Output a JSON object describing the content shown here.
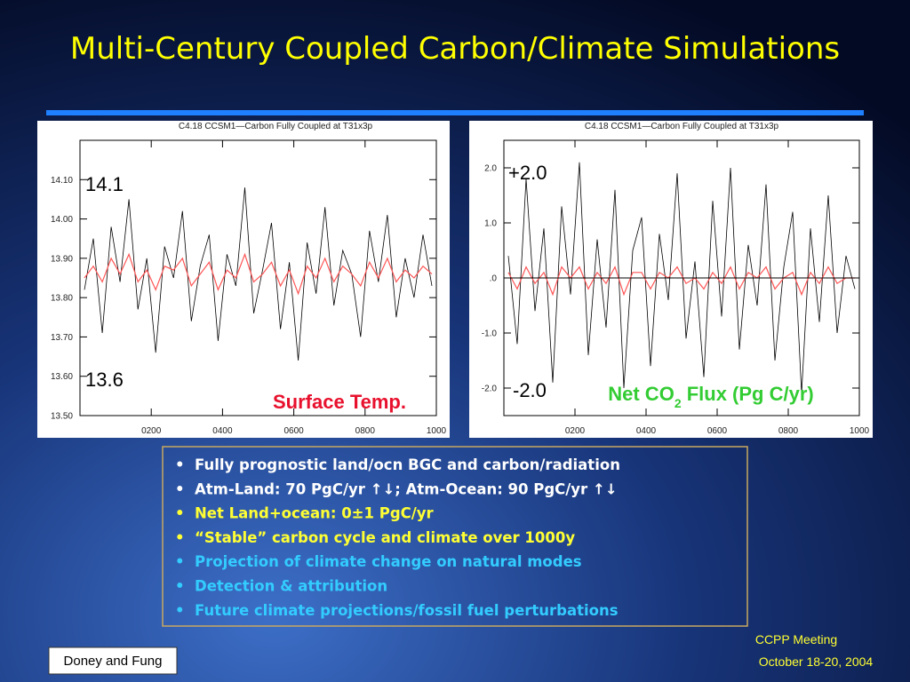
{
  "slide": {
    "title": "Multi-Century Coupled Carbon/Climate Simulations",
    "bullets": [
      {
        "text": "Fully prognostic land/ocn BGC and carbon/radiation",
        "color": "#ffffff"
      },
      {
        "text": "Atm-Land: 70 PgC/yr ↑↓; Atm-Ocean: 90 PgC/yr ↑↓",
        "color": "#ffffff"
      },
      {
        "text": "Net Land+ocean:     0±1 PgC/yr",
        "color": "#ffff33"
      },
      {
        "text": "“Stable” carbon cycle and climate over 1000y",
        "color": "#ffff33"
      },
      {
        "text": "Projection of climate change on natural modes",
        "color": "#33ccff"
      },
      {
        "text": "Detection & attribution",
        "color": "#33ccff"
      },
      {
        "text": "Future climate projections/fossil fuel perturbations",
        "color": "#33ccff"
      }
    ],
    "bullet_mark": "•",
    "meeting": "CCPP Meeting",
    "date": "October 18-20, 2004",
    "authors": "Doney and Fung"
  },
  "chart_data": [
    {
      "type": "line",
      "title": "C4.18 CCSM1—Carbon Fully Coupled at T31x3p",
      "x": [
        12.5,
        37.5,
        62.5,
        87.5,
        112.5,
        137.5,
        162.5,
        187.5,
        212.5,
        237.5,
        262.5,
        287.5,
        312.5,
        337.5,
        362.5,
        387.5,
        412.5,
        437.5,
        462.5,
        487.5,
        512.5,
        537.5,
        562.5,
        587.5,
        612.5,
        637.5,
        662.5,
        687.5,
        712.5,
        737.5,
        762.5,
        787.5,
        812.5,
        837.5,
        862.5,
        887.5,
        912.5,
        937.5,
        962.5,
        987.5
      ],
      "series": [
        {
          "color": "#000000",
          "values": [
            13.82,
            13.95,
            13.71,
            13.98,
            13.84,
            14.05,
            13.77,
            13.9,
            13.66,
            13.93,
            13.85,
            14.02,
            13.74,
            13.88,
            13.96,
            13.69,
            13.91,
            13.83,
            14.08,
            13.76,
            13.87,
            13.99,
            13.72,
            13.89,
            13.64,
            13.94,
            13.81,
            14.03,
            13.78,
            13.92,
            13.86,
            13.7,
            13.97,
            13.84,
            14.01,
            13.75,
            13.9,
            13.8,
            13.96,
            13.83
          ]
        },
        {
          "color": "#ff5555",
          "values": [
            13.85,
            13.88,
            13.84,
            13.9,
            13.86,
            13.91,
            13.84,
            13.87,
            13.82,
            13.88,
            13.87,
            13.9,
            13.83,
            13.86,
            13.89,
            13.82,
            13.87,
            13.85,
            13.91,
            13.84,
            13.86,
            13.89,
            13.83,
            13.87,
            13.81,
            13.88,
            13.85,
            13.9,
            13.84,
            13.88,
            13.86,
            13.83,
            13.89,
            13.85,
            13.9,
            13.84,
            13.87,
            13.85,
            13.88,
            13.86
          ]
        }
      ],
      "xlim": [
        0,
        1000
      ],
      "xticks": [
        {
          "value": 200,
          "label": "0200"
        },
        {
          "value": 400,
          "label": "0400"
        },
        {
          "value": 600,
          "label": "0600"
        },
        {
          "value": 800,
          "label": "0800"
        },
        1000
      ],
      "ylim": [
        13.5,
        14.2
      ],
      "yticks": [
        {
          "value": 13.5,
          "label": "13.50"
        },
        {
          "value": 13.6,
          "label": "13.60"
        },
        {
          "value": 13.7,
          "label": "13.70"
        },
        {
          "value": 13.8,
          "label": "13.80"
        },
        {
          "value": 13.9,
          "label": "13.90"
        },
        {
          "value": 14.0,
          "label": "14.00"
        },
        {
          "value": 14.1,
          "label": "14.10"
        }
      ],
      "annotations": [
        "14.1",
        "13.6"
      ],
      "label": [
        "Surface Temp."
      ],
      "label_color": "#e8112d",
      "zero_line": false
    },
    {
      "type": "line",
      "title": "C4.18 CCSM1—Carbon Fully Coupled at T31x3p",
      "x": [
        12.5,
        37.5,
        62.5,
        87.5,
        112.5,
        137.5,
        162.5,
        187.5,
        212.5,
        237.5,
        262.5,
        287.5,
        312.5,
        337.5,
        362.5,
        387.5,
        412.5,
        437.5,
        462.5,
        487.5,
        512.5,
        537.5,
        562.5,
        587.5,
        612.5,
        637.5,
        662.5,
        687.5,
        712.5,
        737.5,
        762.5,
        787.5,
        812.5,
        837.5,
        862.5,
        887.5,
        912.5,
        937.5,
        962.5,
        987.5
      ],
      "series": [
        {
          "color": "#000000",
          "values": [
            0.4,
            -1.2,
            1.8,
            -0.6,
            0.9,
            -1.9,
            1.3,
            -0.3,
            2.1,
            -1.4,
            0.7,
            -0.9,
            1.6,
            -2.0,
            0.5,
            1.1,
            -1.6,
            0.8,
            -0.4,
            1.9,
            -1.1,
            0.3,
            -1.8,
            1.4,
            -0.7,
            2.0,
            -1.3,
            0.6,
            -0.5,
            1.7,
            -1.5,
            0.2,
            1.2,
            -2.1,
            0.9,
            -0.8,
            1.5,
            -1.0,
            0.4,
            -0.2
          ]
        },
        {
          "color": "#ff5555",
          "values": [
            0.1,
            -0.2,
            0.2,
            -0.1,
            0.1,
            -0.3,
            0.2,
            0.0,
            0.2,
            -0.2,
            0.1,
            -0.1,
            0.2,
            -0.3,
            0.1,
            0.1,
            -0.2,
            0.1,
            0.0,
            0.2,
            -0.1,
            0.0,
            -0.2,
            0.1,
            -0.1,
            0.2,
            -0.2,
            0.1,
            0.0,
            0.2,
            -0.2,
            0.0,
            0.1,
            -0.3,
            0.1,
            -0.1,
            0.2,
            -0.1,
            0.0,
            0.0
          ]
        }
      ],
      "xlim": [
        0,
        1000
      ],
      "xticks": [
        {
          "value": 200,
          "label": "0200"
        },
        {
          "value": 400,
          "label": "0400"
        },
        {
          "value": 600,
          "label": "0600"
        },
        {
          "value": 800,
          "label": "0800"
        },
        1000
      ],
      "ylim": [
        -2.5,
        2.5
      ],
      "yticks": [
        {
          "value": -2.0,
          "label": "-2.0"
        },
        {
          "value": -1.0,
          "label": "-1.0"
        },
        {
          "value": 0,
          "label": ".0"
        },
        {
          "value": 1.0,
          "label": "1.0"
        },
        {
          "value": 2.0,
          "label": "2.0"
        }
      ],
      "annotations": [
        "+2.0",
        "-2.0"
      ],
      "label": [
        "Net CO",
        "2",
        " Flux (Pg C/yr)"
      ],
      "label_color": "#33cc33",
      "zero_line": true
    }
  ]
}
